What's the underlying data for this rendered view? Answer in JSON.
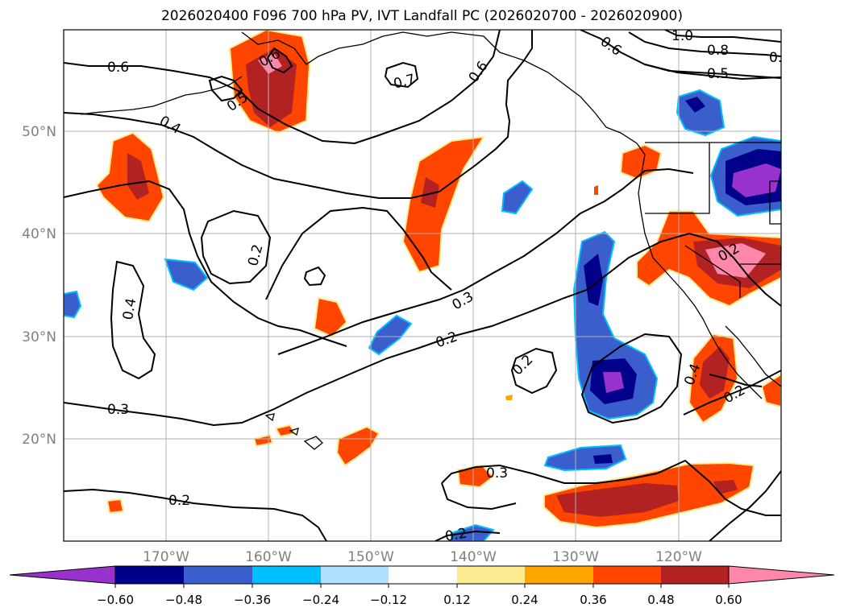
{
  "title": "2026020400 F096 700 hPa PV, IVT Landfall PC (2026020700 - 2026020900)",
  "map": {
    "lon_ticks": [
      "170°W",
      "160°W",
      "150°W",
      "140°W",
      "130°W",
      "120°W"
    ],
    "lat_ticks": [
      "50°N",
      "40°N",
      "30°N",
      "20°N"
    ],
    "contour_labels": [
      "0.6",
      "0.6",
      "0.5",
      "0.7",
      "0.6",
      "0.6",
      "1.0",
      "0.8",
      "0.5",
      "0.5",
      "0.4",
      "0.2",
      "0.4",
      "0.3",
      "0.2",
      "0.2",
      "0.3",
      "0.2",
      "0.3",
      "0.2",
      "0.4",
      "0.2",
      "0.2"
    ]
  },
  "colorbar": {
    "tick_labels": [
      "−0.60",
      "−0.48",
      "−0.36",
      "−0.24",
      "−0.12",
      "0.12",
      "0.24",
      "0.36",
      "0.48",
      "0.60"
    ],
    "colors": [
      "#9932cc",
      "#00008b",
      "#3a5fcd",
      "#00bfff",
      "#b0e2ff",
      "#ffffff",
      "#ffeb8f",
      "#ffa500",
      "#ff4500",
      "#b22222",
      "#ff88aa"
    ]
  },
  "palette": {
    "lo2": "#00008b",
    "lo1": "#3a5fcd",
    "lo0": "#00bfff",
    "lo_edge": "#b0e2ff",
    "lo3": "#9932cc",
    "hi_edge": "#ffeb8f",
    "hi0": "#ffa500",
    "hi1": "#ff4500",
    "hi2": "#b22222",
    "hi3": "#ff88aa"
  }
}
